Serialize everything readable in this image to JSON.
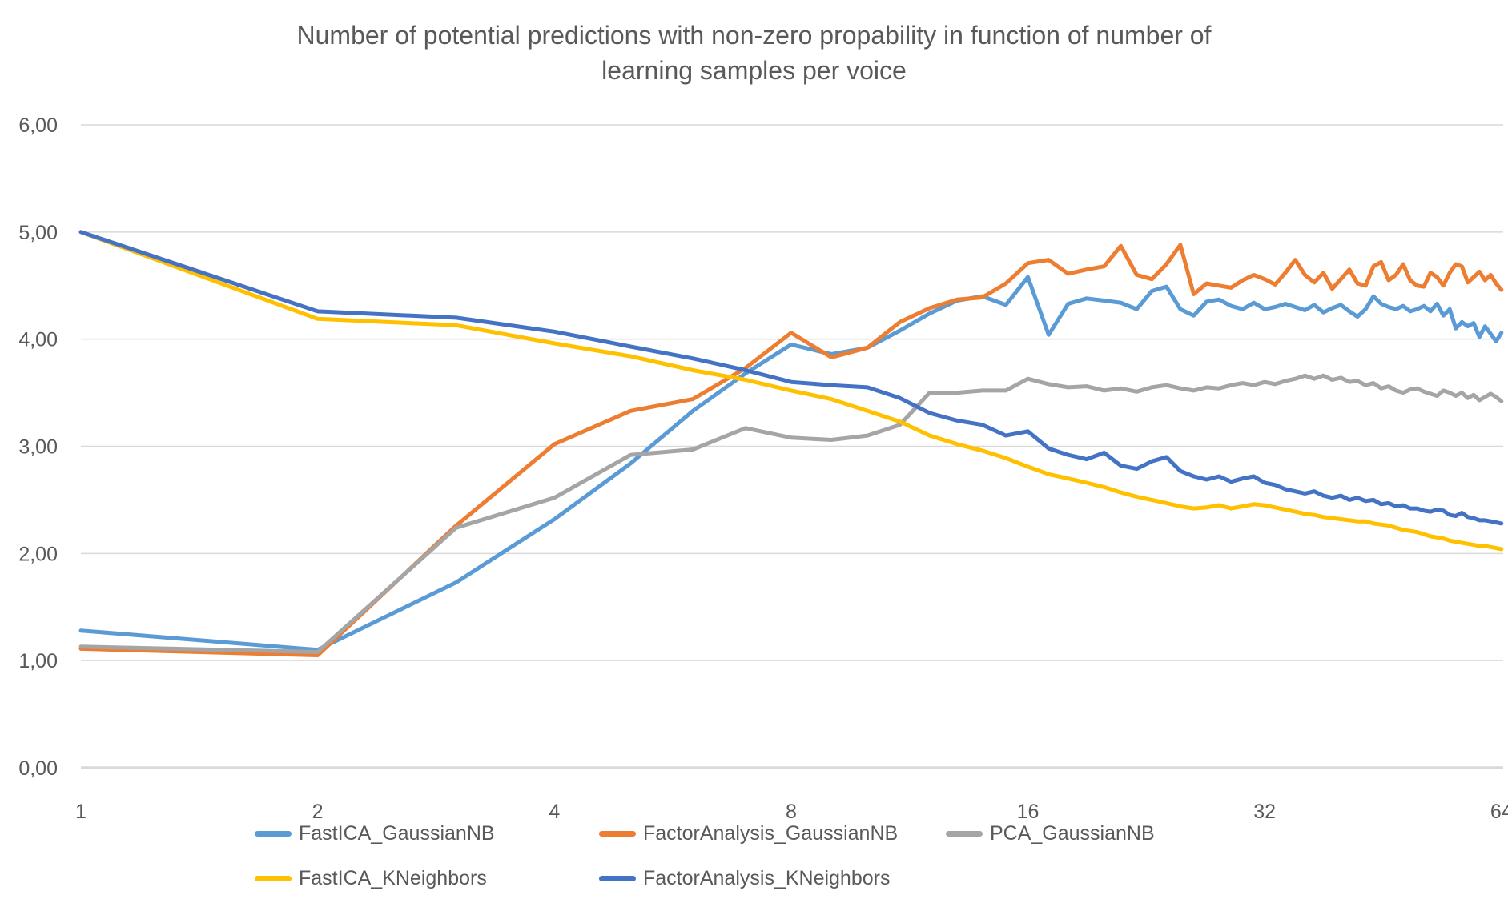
{
  "chart_title": {
    "line1": "Number of potential predictions with non-zero propability in function of number of",
    "line2": "learning samples per voice"
  },
  "chart_data": {
    "type": "line",
    "title": "Number of potential predictions with non-zero propability in function of number of learning samples per voice",
    "xlabel": "",
    "ylabel": "",
    "x_scale": "log2",
    "xlim": [
      1,
      64
    ],
    "ylim": [
      0,
      6
    ],
    "grid": "horizontal",
    "legend_position": "bottom",
    "x_tick_labels": [
      "1",
      "2",
      "4",
      "8",
      "16",
      "32",
      "64"
    ],
    "y_tick_labels": [
      "0,00",
      "1,00",
      "2,00",
      "3,00",
      "4,00",
      "5,00",
      "6,00"
    ],
    "x": [
      1,
      2,
      3,
      4,
      5,
      6,
      7,
      8,
      9,
      10,
      11,
      12,
      13,
      14,
      15,
      16,
      17,
      18,
      19,
      20,
      21,
      22,
      23,
      24,
      25,
      26,
      27,
      28,
      29,
      30,
      31,
      32,
      33,
      34,
      35,
      36,
      37,
      38,
      39,
      40,
      41,
      42,
      43,
      44,
      45,
      46,
      47,
      48,
      49,
      50,
      51,
      52,
      53,
      54,
      55,
      56,
      57,
      58,
      59,
      60,
      61,
      62,
      63,
      64
    ],
    "series": [
      {
        "name": "FastICA_GaussianNB",
        "color": "#5B9BD5",
        "values": [
          1.28,
          1.1,
          1.73,
          2.32,
          2.84,
          3.33,
          3.68,
          3.95,
          3.86,
          3.92,
          4.08,
          4.24,
          4.36,
          4.4,
          4.32,
          4.58,
          4.04,
          4.33,
          4.38,
          4.36,
          4.34,
          4.28,
          4.45,
          4.49,
          4.28,
          4.22,
          4.35,
          4.37,
          4.31,
          4.28,
          4.34,
          4.28,
          4.3,
          4.33,
          4.3,
          4.27,
          4.32,
          4.25,
          4.29,
          4.32,
          4.26,
          4.21,
          4.28,
          4.4,
          4.33,
          4.3,
          4.28,
          4.31,
          4.26,
          4.28,
          4.31,
          4.26,
          4.33,
          4.22,
          4.28,
          4.1,
          4.16,
          4.12,
          4.15,
          4.02,
          4.12,
          4.05,
          3.98,
          4.06
        ]
      },
      {
        "name": "FactorAnalysis_GaussianNB",
        "color": "#ED7D31",
        "values": [
          1.11,
          1.05,
          2.26,
          3.02,
          3.33,
          3.44,
          3.73,
          4.06,
          3.83,
          3.92,
          4.16,
          4.29,
          4.37,
          4.39,
          4.52,
          4.71,
          4.74,
          4.61,
          4.65,
          4.68,
          4.87,
          4.6,
          4.56,
          4.7,
          4.88,
          4.42,
          4.52,
          4.5,
          4.48,
          4.55,
          4.6,
          4.56,
          4.51,
          4.62,
          4.74,
          4.6,
          4.53,
          4.62,
          4.47,
          4.56,
          4.65,
          4.52,
          4.5,
          4.68,
          4.72,
          4.55,
          4.6,
          4.7,
          4.55,
          4.5,
          4.49,
          4.62,
          4.58,
          4.5,
          4.62,
          4.7,
          4.68,
          4.53,
          4.58,
          4.63,
          4.55,
          4.6,
          4.52,
          4.46
        ]
      },
      {
        "name": "PCA_GaussianNB",
        "color": "#A5A5A5",
        "values": [
          1.13,
          1.08,
          2.24,
          2.52,
          2.92,
          2.97,
          3.17,
          3.08,
          3.06,
          3.1,
          3.2,
          3.5,
          3.5,
          3.52,
          3.52,
          3.63,
          3.58,
          3.55,
          3.56,
          3.52,
          3.54,
          3.51,
          3.55,
          3.57,
          3.54,
          3.52,
          3.55,
          3.54,
          3.57,
          3.59,
          3.57,
          3.6,
          3.58,
          3.61,
          3.63,
          3.66,
          3.63,
          3.66,
          3.62,
          3.64,
          3.6,
          3.61,
          3.57,
          3.59,
          3.54,
          3.56,
          3.52,
          3.5,
          3.53,
          3.54,
          3.51,
          3.49,
          3.47,
          3.52,
          3.5,
          3.47,
          3.5,
          3.45,
          3.48,
          3.43,
          3.46,
          3.49,
          3.46,
          3.42
        ]
      },
      {
        "name": "FastICA_KNeighbors",
        "color": "#FFC000",
        "values": [
          5.0,
          4.19,
          4.13,
          3.96,
          3.84,
          3.71,
          3.62,
          3.52,
          3.44,
          3.33,
          3.23,
          3.1,
          3.02,
          2.96,
          2.89,
          2.81,
          2.74,
          2.7,
          2.66,
          2.62,
          2.57,
          2.53,
          2.5,
          2.47,
          2.44,
          2.42,
          2.43,
          2.45,
          2.42,
          2.44,
          2.46,
          2.45,
          2.43,
          2.41,
          2.39,
          2.37,
          2.36,
          2.34,
          2.33,
          2.32,
          2.31,
          2.3,
          2.3,
          2.28,
          2.27,
          2.26,
          2.24,
          2.22,
          2.21,
          2.2,
          2.18,
          2.16,
          2.15,
          2.14,
          2.12,
          2.11,
          2.1,
          2.09,
          2.08,
          2.07,
          2.07,
          2.06,
          2.05,
          2.04
        ]
      },
      {
        "name": "FactorAnalysis_KNeighbors",
        "color": "#4472C4",
        "values": [
          5.0,
          4.26,
          4.2,
          4.07,
          3.93,
          3.82,
          3.71,
          3.6,
          3.57,
          3.55,
          3.45,
          3.31,
          3.24,
          3.2,
          3.1,
          3.14,
          2.98,
          2.92,
          2.88,
          2.94,
          2.82,
          2.79,
          2.86,
          2.9,
          2.77,
          2.72,
          2.69,
          2.72,
          2.67,
          2.7,
          2.72,
          2.66,
          2.64,
          2.6,
          2.58,
          2.56,
          2.58,
          2.54,
          2.52,
          2.54,
          2.5,
          2.52,
          2.49,
          2.5,
          2.46,
          2.47,
          2.44,
          2.45,
          2.42,
          2.42,
          2.4,
          2.39,
          2.41,
          2.4,
          2.36,
          2.35,
          2.38,
          2.34,
          2.33,
          2.31,
          2.31,
          2.3,
          2.29,
          2.28
        ]
      }
    ]
  },
  "colors": {
    "grid_line": "#D9D9D9",
    "axis_line": "#D9D9D9",
    "tick_text": "#595959",
    "title_text": "#595959",
    "background": "#FFFFFF"
  }
}
